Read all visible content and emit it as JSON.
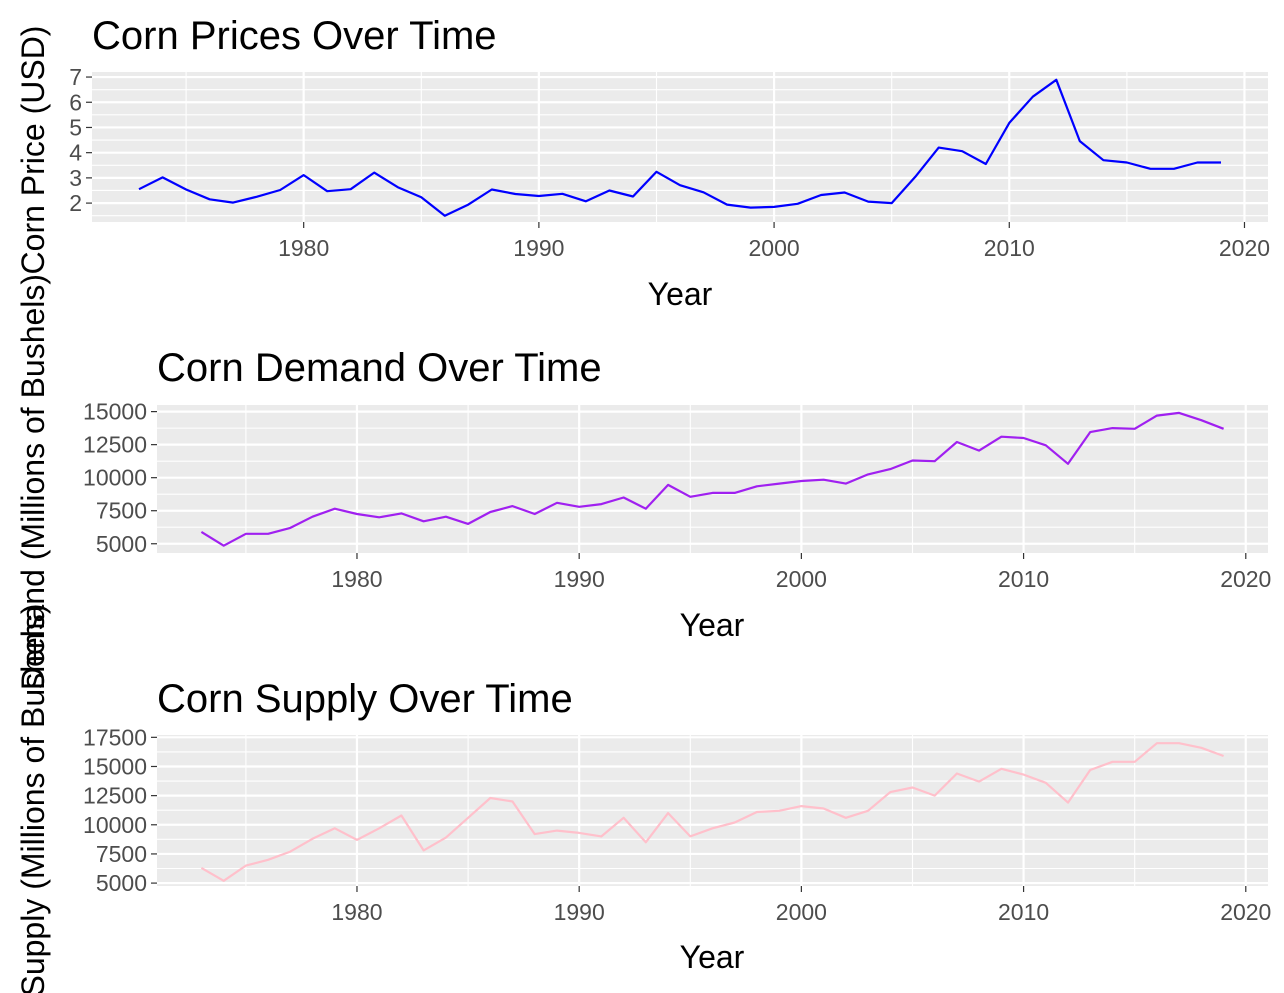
{
  "chart_data": [
    {
      "type": "line",
      "title": "Corn Prices Over Time",
      "xlabel": "Year",
      "ylabel": "Corn Price (USD)",
      "color": "#0000ff",
      "grid": true,
      "xlim": [
        1971,
        2021
      ],
      "ylim": [
        1.25,
        7.2
      ],
      "x_ticks": [
        1980,
        1990,
        2000,
        2010,
        2020
      ],
      "y_ticks": [
        2,
        3,
        4,
        5,
        6,
        7
      ],
      "x": [
        1973,
        1974,
        1975,
        1976,
        1977,
        1978,
        1979,
        1980,
        1981,
        1982,
        1983,
        1984,
        1985,
        1986,
        1987,
        1988,
        1989,
        1990,
        1991,
        1992,
        1993,
        1994,
        1995,
        1996,
        1997,
        1998,
        1999,
        2000,
        2001,
        2002,
        2003,
        2004,
        2005,
        2006,
        2007,
        2008,
        2009,
        2010,
        2011,
        2012,
        2013,
        2014,
        2015,
        2016,
        2017,
        2018,
        2019
      ],
      "y": [
        2.55,
        3.02,
        2.54,
        2.15,
        2.02,
        2.25,
        2.52,
        3.11,
        2.47,
        2.55,
        3.21,
        2.63,
        2.23,
        1.5,
        1.94,
        2.54,
        2.36,
        2.28,
        2.37,
        2.07,
        2.5,
        2.26,
        3.24,
        2.71,
        2.43,
        1.94,
        1.82,
        1.85,
        1.97,
        2.32,
        2.42,
        2.06,
        2.0,
        3.04,
        4.2,
        4.06,
        3.55,
        5.18,
        6.22,
        6.89,
        4.46,
        3.7,
        3.61,
        3.36,
        3.36,
        3.61,
        3.61
      ]
    },
    {
      "type": "line",
      "title": "Corn Demand Over Time",
      "xlabel": "Year",
      "ylabel": "Demand (Millions of Bushels)",
      "color": "#a020f0",
      "grid": true,
      "xlim": [
        1971,
        2021
      ],
      "ylim": [
        4300,
        15500
      ],
      "x_ticks": [
        1980,
        1990,
        2000,
        2010,
        2020
      ],
      "y_ticks": [
        5000,
        7500,
        10000,
        12500,
        15000
      ],
      "x": [
        1973,
        1974,
        1975,
        1976,
        1977,
        1978,
        1979,
        1980,
        1981,
        1982,
        1983,
        1984,
        1985,
        1986,
        1987,
        1988,
        1989,
        1990,
        1991,
        1992,
        1993,
        1994,
        1995,
        1996,
        1997,
        1998,
        1999,
        2000,
        2001,
        2002,
        2003,
        2004,
        2005,
        2006,
        2007,
        2008,
        2009,
        2010,
        2011,
        2012,
        2013,
        2014,
        2015,
        2016,
        2017,
        2018,
        2019
      ],
      "y": [
        5900,
        4850,
        5750,
        5750,
        6200,
        7050,
        7650,
        7250,
        7000,
        7300,
        6700,
        7050,
        6500,
        7400,
        7850,
        7250,
        8100,
        7800,
        8000,
        8500,
        7650,
        9450,
        8550,
        8850,
        8850,
        9350,
        9550,
        9750,
        9850,
        9550,
        10250,
        10650,
        11300,
        11250,
        12700,
        12050,
        13100,
        13000,
        12450,
        11050,
        13450,
        13750,
        13700,
        14700,
        14900,
        14350,
        13700
      ]
    },
    {
      "type": "line",
      "title": "Corn Supply Over Time",
      "xlabel": "Year",
      "ylabel": "Supply (Millions of Bushels)",
      "color": "#ffc0cb",
      "grid": true,
      "xlim": [
        1971,
        2021
      ],
      "ylim": [
        4750,
        17700
      ],
      "x_ticks": [
        1980,
        1990,
        2000,
        2010,
        2020
      ],
      "y_ticks": [
        5000,
        7500,
        10000,
        12500,
        15000,
        17500
      ],
      "x": [
        1973,
        1974,
        1975,
        1976,
        1977,
        1978,
        1979,
        1980,
        1981,
        1982,
        1983,
        1984,
        1985,
        1986,
        1987,
        1988,
        1989,
        1990,
        1991,
        1992,
        1993,
        1994,
        1995,
        1996,
        1997,
        1998,
        1999,
        2000,
        2001,
        2002,
        2003,
        2004,
        2005,
        2006,
        2007,
        2008,
        2009,
        2010,
        2011,
        2012,
        2013,
        2014,
        2015,
        2016,
        2017,
        2018,
        2019
      ],
      "y": [
        6300,
        5200,
        6500,
        7000,
        7700,
        8800,
        9700,
        8700,
        9700,
        10800,
        7800,
        8900,
        10600,
        12300,
        12000,
        9200,
        9500,
        9300,
        9000,
        10600,
        8500,
        11000,
        9000,
        9700,
        10200,
        11100,
        11200,
        11600,
        11400,
        10600,
        11200,
        12800,
        13200,
        12500,
        14400,
        13700,
        14800,
        14300,
        13600,
        11900,
        14700,
        15400,
        15400,
        17000,
        17000,
        16600,
        15900
      ]
    }
  ]
}
